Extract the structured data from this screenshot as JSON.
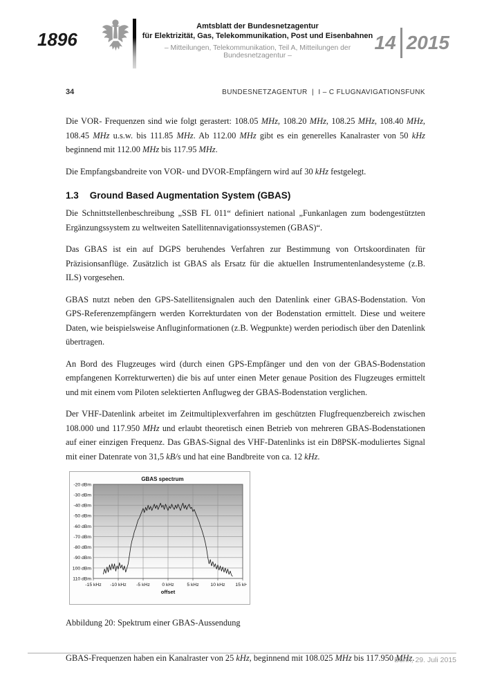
{
  "masthead": {
    "issue_number": "1896",
    "title_line1": "Amtsblatt der Bundesnetzagentur",
    "title_line2": "für Elektrizität, Gas, Telekommunikation, Post und Eisenbahnen",
    "subtitle": "– Mitteilungen, Telekommunikation, Teil A, Mitteilungen der Bundesnetzagentur –",
    "edition": "14",
    "year": "2015"
  },
  "page_header": {
    "page_number": "34",
    "running_title": "BUNDESNETZAGENTUR  |  I – C FLUGNAVIGATIONSFUNK"
  },
  "content": {
    "blocks": [
      {
        "type": "p",
        "segments": [
          {
            "t": "Die VOR- Frequenzen sind wie folgt gerastert: 108.05 "
          },
          {
            "t": "MHz",
            "i": true
          },
          {
            "t": ", 108.20 "
          },
          {
            "t": "MHz",
            "i": true
          },
          {
            "t": ", 108.25 "
          },
          {
            "t": "MHz",
            "i": true
          },
          {
            "t": ", 108.40 "
          },
          {
            "t": "MHz",
            "i": true
          },
          {
            "t": ", 108.45 "
          },
          {
            "t": "MHz",
            "i": true
          },
          {
            "t": " u.s.w. bis 111.85 "
          },
          {
            "t": "MHz",
            "i": true
          },
          {
            "t": ". Ab 112.00 "
          },
          {
            "t": "MHz",
            "i": true
          },
          {
            "t": " gibt es ein generelles Kanalraster von 50 "
          },
          {
            "t": "kHz",
            "i": true
          },
          {
            "t": " beginnend mit 112.00 "
          },
          {
            "t": "MHz",
            "i": true
          },
          {
            "t": " bis 117.95 "
          },
          {
            "t": "MHz",
            "i": true
          },
          {
            "t": "."
          }
        ]
      },
      {
        "type": "p",
        "segments": [
          {
            "t": "Die Empfangsbandreite von VOR- und DVOR-Empfängern wird auf 30 "
          },
          {
            "t": "kHz",
            "i": true
          },
          {
            "t": " festgelegt."
          }
        ]
      },
      {
        "type": "heading",
        "number": "1.3",
        "title": "Ground Based Augmentation System (GBAS)"
      },
      {
        "type": "p",
        "segments": [
          {
            "t": "Die Schnittstellenbeschreibung „SSB FL 011“ definiert national „Funkanlagen zum bodengestützten Ergänzungssystem zu weltweiten Satellitennavigationssystemen (GBAS)“."
          }
        ]
      },
      {
        "type": "p",
        "segments": [
          {
            "t": "Das GBAS ist ein auf DGPS beruhendes Verfahren zur Bestimmung von Ortskoordinaten für Präzisionsanflüge. Zusätzlich ist GBAS als Ersatz für die aktuellen Instrumentenlandesysteme (z.B. ILS) vorgesehen."
          }
        ]
      },
      {
        "type": "p",
        "segments": [
          {
            "t": "GBAS nutzt neben den GPS-Satellitensignalen auch den Datenlink einer GBAS-Bodenstation. Von GPS-Referenzempfängern werden Korrekturdaten von der Bodenstation ermittelt. Diese und weitere Daten, wie beispielsweise Anfluginformationen (z.B. Wegpunkte) werden periodisch über den Datenlink übertragen."
          }
        ]
      },
      {
        "type": "p",
        "segments": [
          {
            "t": "An Bord des Flugzeuges wird (durch einen GPS-Empfänger und den von der GBAS-Bodenstation empfangenen Korrekturwerten) die bis auf unter einen Meter genaue Position des Flugzeuges ermittelt und mit einem vom Piloten selektierten Anflugweg der GBAS-Bodenstation verglichen."
          }
        ]
      },
      {
        "type": "p",
        "segments": [
          {
            "t": "Der VHF-Datenlink arbeitet im Zeitmultiplexverfahren im geschützten Flugfrequenzbereich zwischen 108.000 und 117.950 "
          },
          {
            "t": "MHz",
            "i": true
          },
          {
            "t": " und erlaubt theoretisch einen Betrieb von mehreren GBAS-Bodenstationen auf einer einzigen Frequenz. Das GBAS-Signal des VHF-Datenlinks ist ein D8PSK-moduliertes Signal mit einer Datenrate von 31,5 "
          },
          {
            "t": "kB/s",
            "i": true
          },
          {
            "t": " und hat eine Bandbreite von ca. 12 "
          },
          {
            "t": "kHz",
            "i": true
          },
          {
            "t": "."
          }
        ]
      }
    ],
    "closing": [
      {
        "t": "GBAS-Frequenzen haben ein Kanalraster von 25 "
      },
      {
        "t": "kHz",
        "i": true
      },
      {
        "t": ", beginnend mit 108.025 "
      },
      {
        "t": "MHz",
        "i": true
      },
      {
        "t": " bis 117.950 "
      },
      {
        "t": "MHz",
        "i": true
      },
      {
        "t": "."
      }
    ]
  },
  "figure": {
    "caption": "Abbildung 20: Spektrum einer GBAS-Aussendung"
  },
  "chart_data": {
    "type": "line",
    "title": "GBAS spectrum",
    "xlabel": "offset",
    "ylabel": "",
    "xlim": [
      -15,
      15
    ],
    "ylim": [
      -110,
      -20
    ],
    "x_tick_values": [
      -15,
      -10,
      -5,
      0,
      5,
      10,
      15
    ],
    "x_ticks": [
      "-15 kHz",
      "-10 kHz",
      "-5 kHz",
      "0 kHz",
      "5 kHz",
      "10 kHz",
      "15 kHz"
    ],
    "y_tick_values": [
      -20,
      -30,
      -40,
      -50,
      -60,
      -70,
      -80,
      -90,
      -100,
      -110
    ],
    "y_ticks": [
      "-20 dBm",
      "-30 dBm",
      "-40 dBm",
      "-50 dBm",
      "-60 dBm",
      "-70 dBm",
      "-80 dBm",
      "-90 dBm",
      "-100 dBm",
      "-110 dBm"
    ],
    "grid": true,
    "legend": false,
    "plot_bg_gradient": [
      "#9d9d9d",
      "#d6d6d6",
      "#f4f4f4",
      "#ffffff"
    ],
    "line_color": "#141414",
    "series": [
      {
        "name": "spectrum",
        "points": [
          [
            -13,
            -106
          ],
          [
            -12.75,
            -101
          ],
          [
            -12.5,
            -105
          ],
          [
            -12.25,
            -99
          ],
          [
            -12,
            -104
          ],
          [
            -11.75,
            -97
          ],
          [
            -11.5,
            -102
          ],
          [
            -11.25,
            -96
          ],
          [
            -11,
            -101
          ],
          [
            -10.75,
            -96
          ],
          [
            -10.5,
            -103
          ],
          [
            -10.25,
            -98
          ],
          [
            -10,
            -101
          ],
          [
            -9.75,
            -95
          ],
          [
            -9.5,
            -100
          ],
          [
            -9.25,
            -97
          ],
          [
            -9,
            -102
          ],
          [
            -8.75,
            -98
          ],
          [
            -8.5,
            -104
          ],
          [
            -8.25,
            -100
          ],
          [
            -8,
            -96
          ],
          [
            -7.75,
            -88
          ],
          [
            -7.5,
            -80
          ],
          [
            -7.25,
            -74
          ],
          [
            -7,
            -70
          ],
          [
            -6.75,
            -65
          ],
          [
            -6.5,
            -62
          ],
          [
            -6.25,
            -58
          ],
          [
            -6,
            -54
          ],
          [
            -5.75,
            -52
          ],
          [
            -5.5,
            -49
          ],
          [
            -5.25,
            -46
          ],
          [
            -5,
            -43
          ],
          [
            -4.75,
            -47
          ],
          [
            -4.5,
            -42
          ],
          [
            -4.25,
            -45
          ],
          [
            -4,
            -40
          ],
          [
            -3.75,
            -44
          ],
          [
            -3.5,
            -41
          ],
          [
            -3.25,
            -45
          ],
          [
            -3,
            -42
          ],
          [
            -2.75,
            -39
          ],
          [
            -2.5,
            -43
          ],
          [
            -2.25,
            -40
          ],
          [
            -2,
            -44
          ],
          [
            -1.75,
            -41
          ],
          [
            -1.5,
            -38
          ],
          [
            -1.25,
            -42
          ],
          [
            -1,
            -40
          ],
          [
            -0.75,
            -44
          ],
          [
            -0.5,
            -39
          ],
          [
            -0.25,
            -42
          ],
          [
            0,
            -45
          ],
          [
            0.25,
            -41
          ],
          [
            0.5,
            -43
          ],
          [
            0.75,
            -39
          ],
          [
            1,
            -42
          ],
          [
            1.25,
            -44
          ],
          [
            1.5,
            -40
          ],
          [
            1.75,
            -43
          ],
          [
            2,
            -39
          ],
          [
            2.25,
            -42
          ],
          [
            2.5,
            -45
          ],
          [
            2.75,
            -41
          ],
          [
            3,
            -38
          ],
          [
            3.25,
            -43
          ],
          [
            3.5,
            -40
          ],
          [
            3.75,
            -44
          ],
          [
            4,
            -41
          ],
          [
            4.25,
            -39
          ],
          [
            4.5,
            -43
          ],
          [
            4.75,
            -42
          ],
          [
            5,
            -46
          ],
          [
            5.25,
            -44
          ],
          [
            5.5,
            -47
          ],
          [
            5.75,
            -50
          ],
          [
            6,
            -53
          ],
          [
            6.25,
            -56
          ],
          [
            6.5,
            -60
          ],
          [
            6.75,
            -63
          ],
          [
            7,
            -67
          ],
          [
            7.25,
            -71
          ],
          [
            7.5,
            -76
          ],
          [
            7.75,
            -82
          ],
          [
            8,
            -90
          ],
          [
            8.25,
            -96
          ],
          [
            8.5,
            -92
          ],
          [
            8.75,
            -98
          ],
          [
            9,
            -94
          ],
          [
            9.25,
            -99
          ],
          [
            9.5,
            -96
          ],
          [
            9.75,
            -101
          ],
          [
            10,
            -97
          ],
          [
            10.25,
            -102
          ],
          [
            10.5,
            -98
          ],
          [
            10.75,
            -103
          ],
          [
            11,
            -99
          ],
          [
            11.25,
            -104
          ],
          [
            11.5,
            -100
          ],
          [
            11.75,
            -105
          ],
          [
            12,
            -101
          ],
          [
            12.25,
            -106
          ],
          [
            12.5,
            -103
          ],
          [
            12.75,
            -107
          ],
          [
            13,
            -108
          ]
        ]
      }
    ]
  },
  "footer": {
    "date_place": "Bonn, 29. Juli 2015"
  }
}
